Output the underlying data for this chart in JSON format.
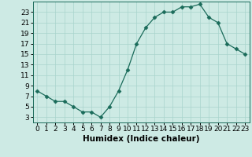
{
  "x": [
    0,
    1,
    2,
    3,
    4,
    5,
    6,
    7,
    8,
    9,
    10,
    11,
    12,
    13,
    14,
    15,
    16,
    17,
    18,
    19,
    20,
    21,
    22,
    23
  ],
  "y": [
    8,
    7,
    6,
    6,
    5,
    4,
    4,
    3,
    5,
    8,
    12,
    17,
    20,
    22,
    23,
    23,
    24,
    24,
    24.5,
    22,
    21,
    17,
    16,
    15
  ],
  "line_color": "#1a6b5a",
  "marker": "D",
  "marker_size": 2.5,
  "bg_color": "#cdeae4",
  "grid_color": "#a8d4cc",
  "xlabel": "Humidex (Indice chaleur)",
  "xlabel_fontsize": 7.5,
  "tick_fontsize": 6.5,
  "ylim": [
    2,
    25
  ],
  "yticks": [
    3,
    5,
    7,
    9,
    11,
    13,
    15,
    17,
    19,
    21,
    23
  ],
  "xlim": [
    -0.5,
    23.5
  ],
  "xticks": [
    0,
    1,
    2,
    3,
    4,
    5,
    6,
    7,
    8,
    9,
    10,
    11,
    12,
    13,
    14,
    15,
    16,
    17,
    18,
    19,
    20,
    21,
    22,
    23
  ]
}
